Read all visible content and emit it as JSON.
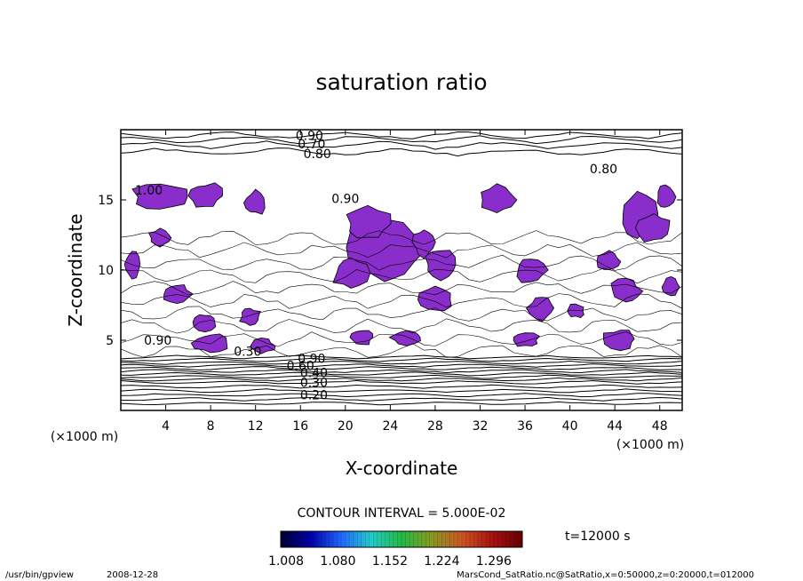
{
  "chart_data": {
    "type": "heatmap",
    "title": "saturation ratio",
    "xlabel": "X-coordinate",
    "ylabel": "Z-coordinate",
    "x_unit_label": "(×1000 m)",
    "z_unit_label": "(×1000 m)",
    "xlim": [
      0,
      50
    ],
    "ylim": [
      0,
      20
    ],
    "x_ticks": [
      4,
      8,
      12,
      16,
      20,
      24,
      28,
      32,
      36,
      40,
      44,
      48
    ],
    "y_ticks": [
      5,
      10,
      15
    ],
    "contour_interval_text": "CONTOUR INTERVAL = 5.000E-02",
    "time_text": "t=12000 s",
    "colorbar": {
      "ticks": [
        "1.008",
        "1.080",
        "1.152",
        "1.224",
        "1.296"
      ],
      "range": [
        1.008,
        1.296
      ],
      "colors": [
        "#000033",
        "#0000aa",
        "#2266ff",
        "#22cccc",
        "#22bb44",
        "#889922",
        "#cc5522",
        "#aa1111",
        "#660000"
      ]
    },
    "shading_color": "#8a2ecb",
    "contour_labels": [
      {
        "text": "0.90",
        "x": 16.8,
        "z": 19.6
      },
      {
        "text": "0.70",
        "x": 17.0,
        "z": 19.0
      },
      {
        "text": "0.80",
        "x": 17.5,
        "z": 18.3
      },
      {
        "text": "0.80",
        "x": 43.0,
        "z": 17.2
      },
      {
        "text": "0.90",
        "x": 20.0,
        "z": 15.1
      },
      {
        "text": "1.00",
        "x": 2.5,
        "z": 15.7
      },
      {
        "text": "0.90",
        "x": 3.3,
        "z": 5.0
      },
      {
        "text": "0.30",
        "x": 11.3,
        "z": 4.2
      },
      {
        "text": "0.60",
        "x": 16.0,
        "z": 3.2
      },
      {
        "text": "0.40",
        "x": 17.2,
        "z": 2.7
      },
      {
        "text": "0.30",
        "x": 17.2,
        "z": 2.0
      },
      {
        "text": "0.20",
        "x": 17.2,
        "z": 1.1
      },
      {
        "text": "0.90",
        "x": 17.0,
        "z": 3.7
      }
    ],
    "contour_lines_z": [
      0.5,
      0.8,
      1.1,
      1.4,
      1.7,
      2.0,
      2.2,
      2.4,
      2.6,
      2.8,
      3.0,
      3.2,
      3.4,
      3.6,
      3.8,
      18.4,
      18.9,
      19.3,
      19.6
    ]
  },
  "footer": {
    "program": "/usr/bin/gpview",
    "date": "2008-12-28",
    "source": "MarsCond_SatRatio.nc@SatRatio,x=0:50000,z=0:20000,t=012000"
  }
}
